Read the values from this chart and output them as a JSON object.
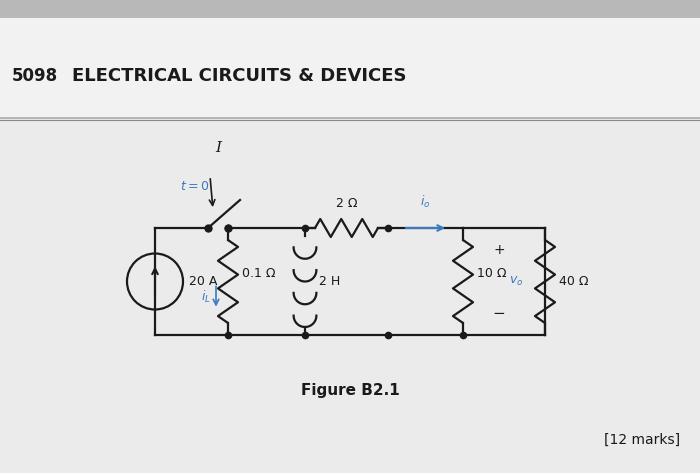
{
  "bg_top_strip": "#c8c8c8",
  "bg_header": "#f5f5f5",
  "bg_body": "#f0f0f0",
  "header_line_color": "#888888",
  "page_number": "5098",
  "header_title": "ELECTRICAL CIRCUITS & DEVICES",
  "figure_label": "Figure B2.1",
  "marks_text": "[12 marks]",
  "blue_color": "#3a7abf",
  "black": "#1a1a1a",
  "circuit": {
    "current_source_value": "20 A",
    "r1_value": "0.1 Ω",
    "il_label": "i_L",
    "r2_value": "2 H",
    "r3_value": "2 Ω",
    "io_label": "i_o",
    "r4_value": "10 Ω",
    "vo_label": "v_o",
    "r5_value": "40 Ω",
    "switch_label": "t = 0"
  }
}
